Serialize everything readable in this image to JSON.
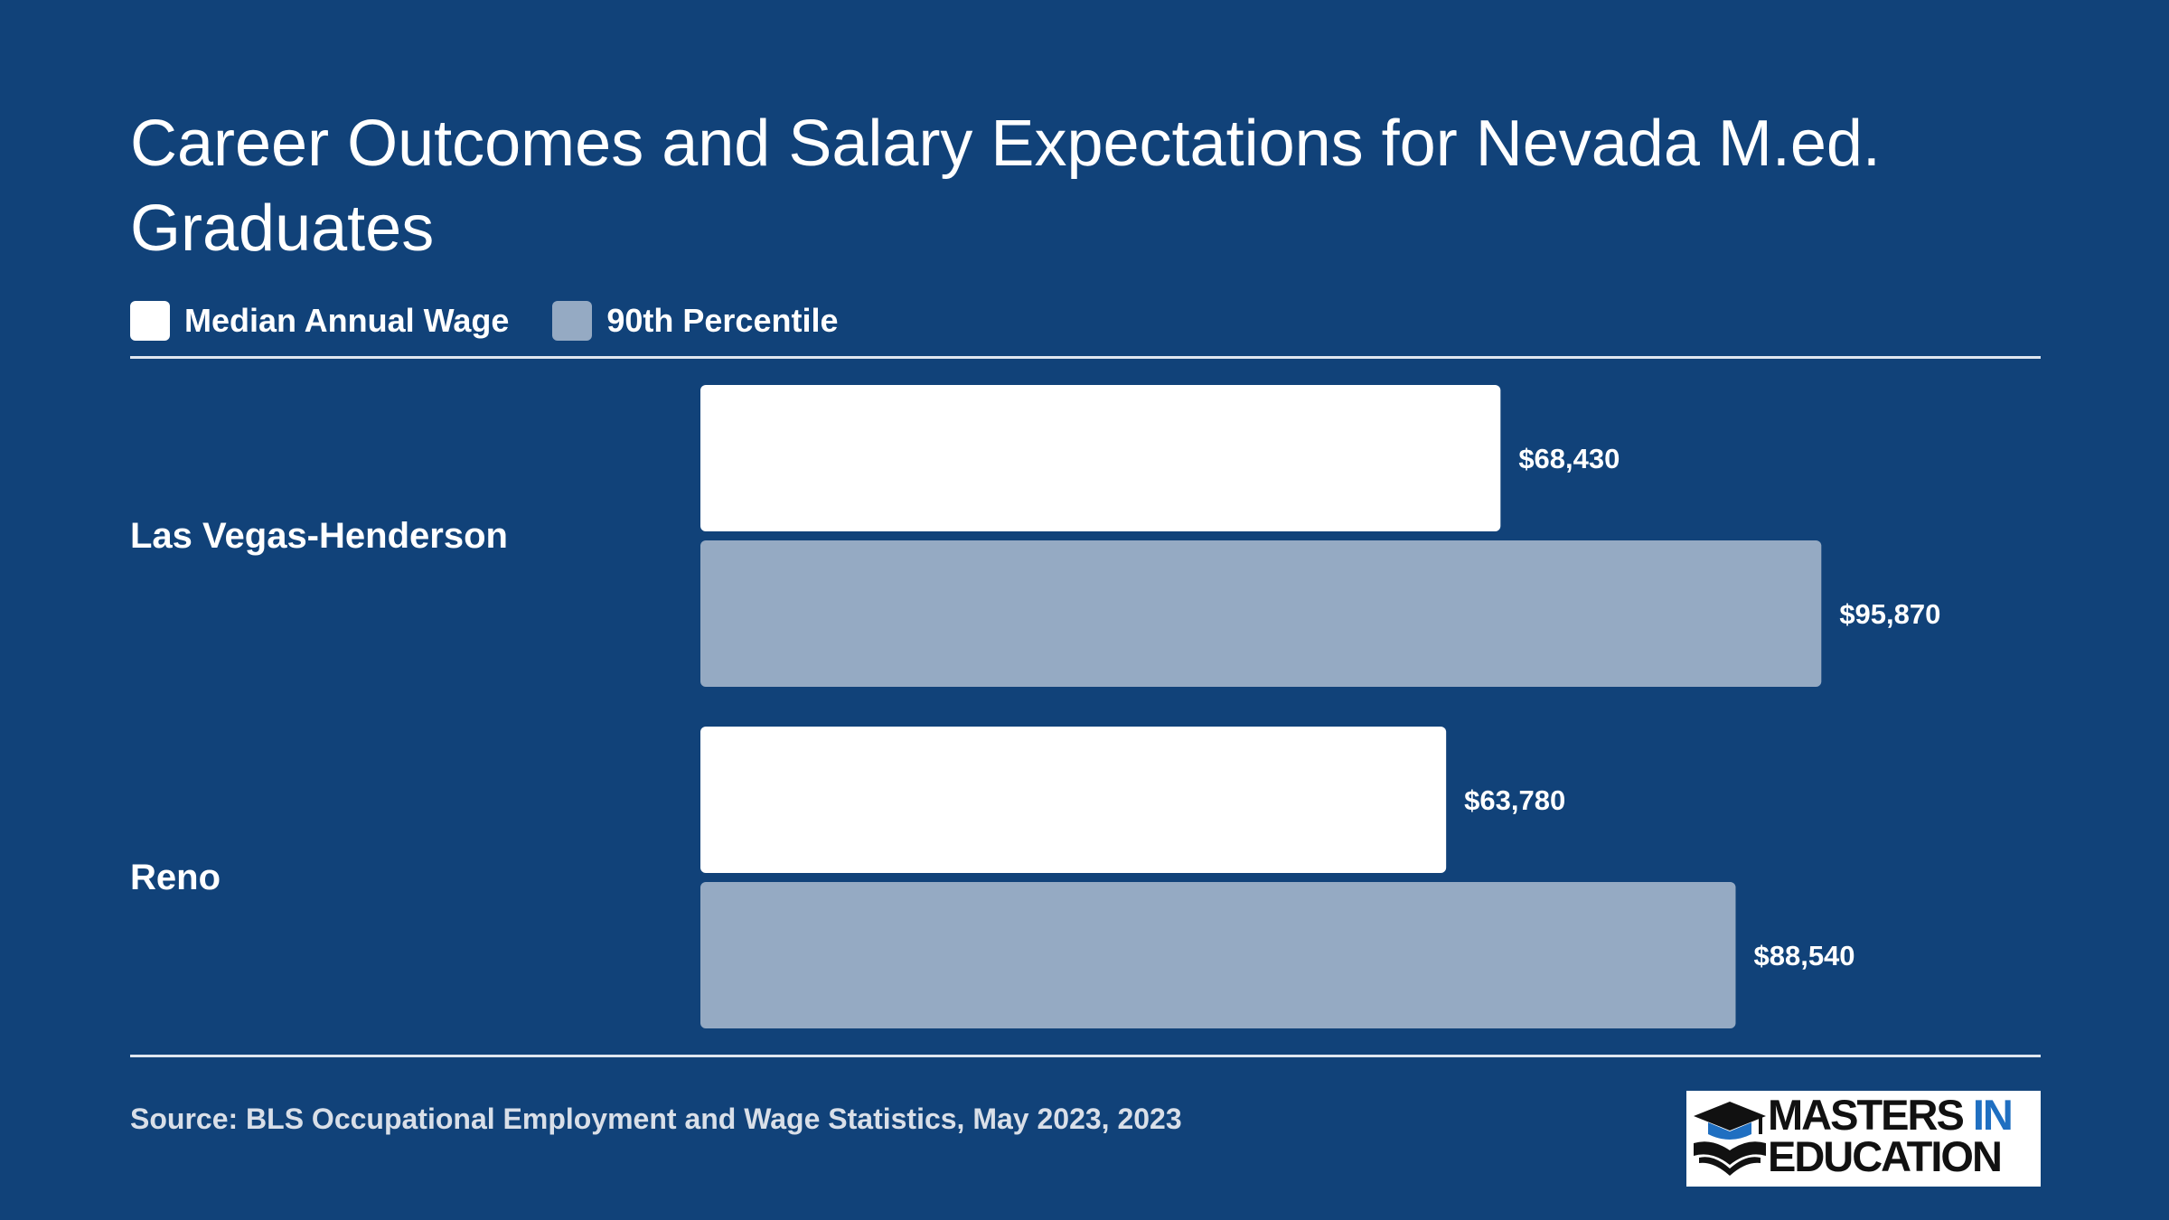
{
  "colors": {
    "background": "#114279",
    "median": "#ffffff",
    "percentile90": "#95aac3",
    "text": "#ffffff",
    "logo_accent": "#1f6fc1"
  },
  "chart_data": {
    "type": "bar",
    "orientation": "horizontal",
    "title": "Career Outcomes and Salary Expectations for Nevada M.ed. Graduates",
    "categories": [
      "Las Vegas-Henderson",
      "Reno"
    ],
    "series": [
      {
        "name": "Median Annual Wage",
        "color": "#ffffff",
        "values": [
          68430,
          63780
        ],
        "labels": [
          "$68,430",
          "$63,780"
        ]
      },
      {
        "name": "90th Percentile",
        "color": "#95aac3",
        "values": [
          95870,
          88540
        ],
        "labels": [
          "$95,870",
          "$88,540"
        ]
      }
    ],
    "xlim": [
      0,
      96000
    ],
    "grid": false,
    "legend_position": "top-left"
  },
  "source": "Source: BLS Occupational Employment and Wage Statistics, May 2023, 2023",
  "logo": {
    "line1_main": "MASTERS",
    "line1_accent": "IN",
    "line2": "EDUCATION",
    "icon": "graduation-cap-book-icon"
  }
}
